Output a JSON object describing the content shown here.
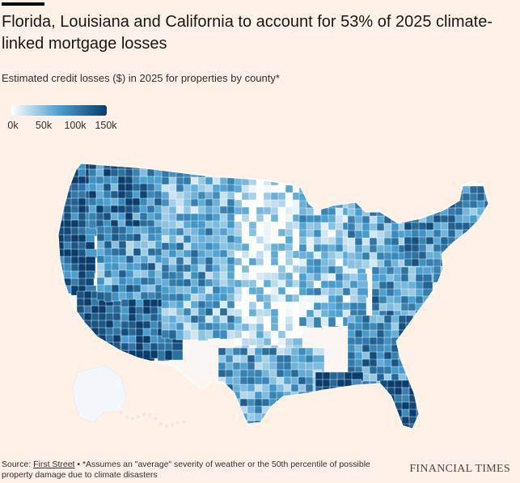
{
  "header": {
    "title": "Florida, Louisiana and California to account for 53% of 2025 climate-linked mortgage losses",
    "subtitle": "Estimated credit losses ($) in 2025 for properties by county*"
  },
  "legend": {
    "ticks": [
      "0k",
      "50k",
      "100k",
      "150k"
    ],
    "color_low": "#ffffff",
    "color_mid": "#4aa0d0",
    "color_high": "#0a3d6b"
  },
  "map": {
    "regions": [
      {
        "id": "pacific-coast",
        "level": 0.85
      },
      {
        "id": "california-south",
        "level": 0.95
      },
      {
        "id": "pacific-northwest-interior",
        "level": 0.7
      },
      {
        "id": "nevada-utah",
        "level": 0.55
      },
      {
        "id": "arizona",
        "level": 0.85
      },
      {
        "id": "rockies",
        "level": 0.45
      },
      {
        "id": "great-plains",
        "level": 0.12
      },
      {
        "id": "midwest",
        "level": 0.35
      },
      {
        "id": "great-lakes",
        "level": 0.45
      },
      {
        "id": "northeast",
        "level": 0.6
      },
      {
        "id": "appalachia",
        "level": 0.55
      },
      {
        "id": "southeast",
        "level": 0.6
      },
      {
        "id": "texas-gulf",
        "level": 0.5
      },
      {
        "id": "louisiana",
        "level": 0.9
      },
      {
        "id": "florida",
        "level": 0.95
      },
      {
        "id": "alaska",
        "level": 0.02
      }
    ]
  },
  "footer": {
    "source_label": "Source:",
    "source_link": "First Street",
    "note": " • *Assumes an \"average\" severity of weather or the 50th percentile of possible property damage due to climate disasters",
    "brand": "FINANCIAL TIMES"
  }
}
